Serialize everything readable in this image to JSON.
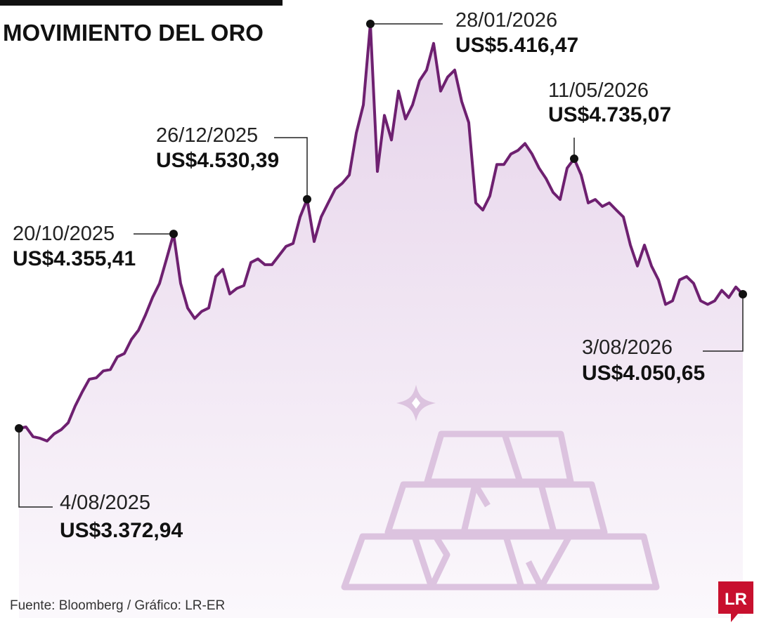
{
  "chart_data": {
    "type": "area",
    "title": "MOVIMIENTO DEL ORO",
    "source": "Fuente: Bloomberg / Gráfico: LR-ER",
    "logo": "LR",
    "color": "#6e2070",
    "values": [
      3372.94,
      3380,
      3331,
      3323,
      3309,
      3345,
      3366,
      3401,
      3486,
      3557,
      3621,
      3628,
      3663,
      3670,
      3734,
      3751,
      3822,
      3868,
      3946,
      4034,
      4105,
      4229,
      4355.41,
      4105,
      3981,
      3928,
      3964,
      3981,
      4140,
      4176,
      4052,
      4080,
      4094,
      4211,
      4229,
      4200,
      4200,
      4246,
      4292,
      4307,
      4441,
      4530.39,
      4317,
      4441,
      4512,
      4582,
      4611,
      4653,
      4865,
      5007,
      5416.47,
      4671,
      4954,
      4830,
      5077,
      4936,
      5007,
      5130,
      5183,
      5318,
      5077,
      5148,
      5183,
      5024,
      4918,
      4512,
      4476,
      4547,
      4706,
      4706,
      4759,
      4777,
      4812,
      4759,
      4688,
      4635,
      4565,
      4529,
      4688,
      4735.07,
      4653,
      4512,
      4529,
      4494,
      4512,
      4476,
      4441,
      4299,
      4193,
      4299,
      4193,
      4123,
      3999,
      4017,
      4123,
      4140,
      4105,
      4017,
      3999,
      4017,
      4070,
      4034,
      4087,
      4050.65
    ],
    "annotations": [
      {
        "date": "4/08/2025",
        "value": 3372.94,
        "value_label": "US$3.372,94"
      },
      {
        "date": "20/10/2025",
        "value": 4355.41,
        "value_label": "US$4.355,41"
      },
      {
        "date": "26/12/2025",
        "value": 4530.39,
        "value_label": "US$4.530,39"
      },
      {
        "date": "28/01/2026",
        "value": 5416.47,
        "value_label": "US$5.416,47"
      },
      {
        "date": "11/05/2026",
        "value": 4735.07,
        "value_label": "US$4.735,07"
      },
      {
        "date": "3/08/2026",
        "value": 4050.65,
        "value_label": "US$4.050,65"
      }
    ]
  }
}
